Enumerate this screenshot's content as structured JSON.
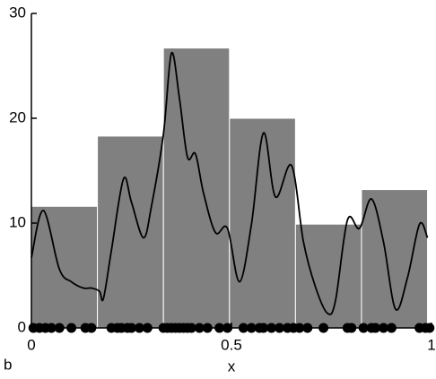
{
  "chart_data": {
    "type": "histogram",
    "panel_label": "b",
    "xlabel": "x",
    "bins": [
      0,
      0.165,
      0.33,
      0.495,
      0.66,
      0.825,
      0.99
    ],
    "counts": [
      11.6,
      18.3,
      26.7,
      20,
      9.9,
      13.2
    ],
    "color": "#808080",
    "kde": {
      "color": "#000000",
      "x": [
        0,
        0.03,
        0.07,
        0.1,
        0.13,
        0.15,
        0.17,
        0.18,
        0.2,
        0.23,
        0.25,
        0.28,
        0.3,
        0.33,
        0.35,
        0.37,
        0.39,
        0.41,
        0.43,
        0.46,
        0.49,
        0.52,
        0.55,
        0.58,
        0.61,
        0.65,
        0.68,
        0.71,
        0.74,
        0.76,
        0.79,
        0.82,
        0.85,
        0.88,
        0.91,
        0.94,
        0.97,
        0.99
      ],
      "values": [
        6.7,
        11.2,
        5.6,
        4.4,
        3.8,
        3.8,
        3.5,
        2.8,
        7.4,
        14.2,
        12,
        8.6,
        11.6,
        18.5,
        26.2,
        21.9,
        16.3,
        16.6,
        12.9,
        9.1,
        9.5,
        4.4,
        9.9,
        18.6,
        12.5,
        15.5,
        8.2,
        3.9,
        1.4,
        2.6,
        10.3,
        9.5,
        12.3,
        8.2,
        1.8,
        4.8,
        9.9,
        8.6
      ]
    },
    "rug": [
      0.005,
      0.02,
      0.035,
      0.05,
      0.07,
      0.1,
      0.135,
      0.15,
      0.2,
      0.215,
      0.225,
      0.24,
      0.25,
      0.27,
      0.29,
      0.33,
      0.34,
      0.35,
      0.36,
      0.37,
      0.38,
      0.39,
      0.4,
      0.42,
      0.44,
      0.47,
      0.49,
      0.53,
      0.55,
      0.57,
      0.58,
      0.6,
      0.62,
      0.64,
      0.655,
      0.67,
      0.69,
      0.73,
      0.79,
      0.8,
      0.83,
      0.85,
      0.86,
      0.88,
      0.9,
      0.97,
      0.985,
      0.995
    ],
    "xlim": [
      0,
      1
    ],
    "xticks": [
      0,
      0.5,
      1
    ],
    "ylim": [
      0,
      30
    ],
    "yticks": [
      0,
      10,
      20,
      30
    ]
  }
}
